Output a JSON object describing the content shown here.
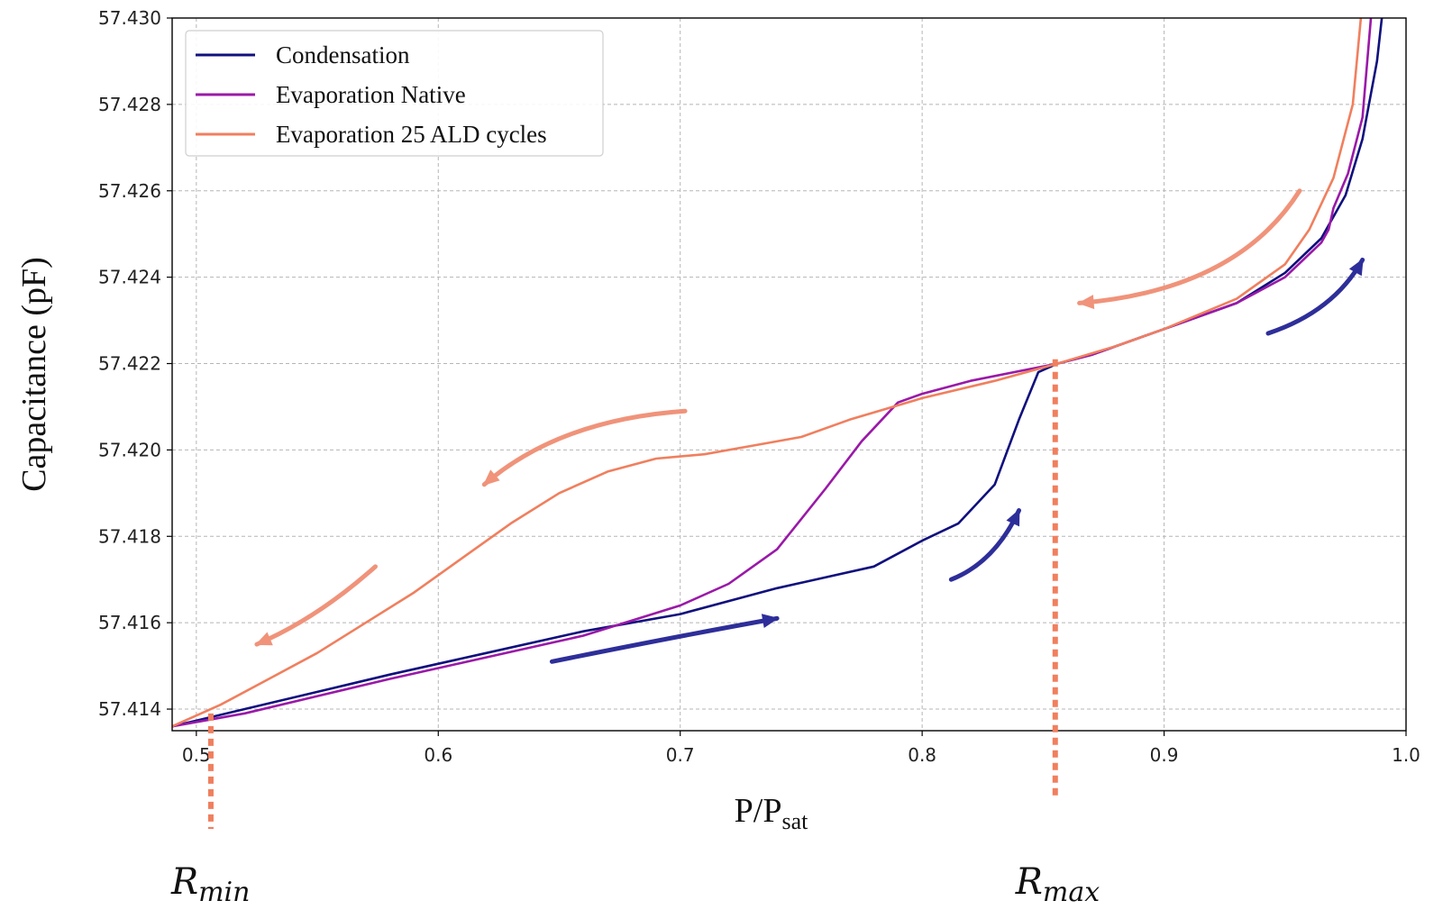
{
  "chart_data": {
    "type": "line",
    "xlabel": "P/P",
    "xlabel_sub": "sat",
    "ylabel": "Capacitance (pF)",
    "xlim": [
      0.49,
      1.0
    ],
    "ylim": [
      57.4135,
      57.43
    ],
    "x_ticks": [
      0.5,
      0.6,
      0.7,
      0.8,
      0.9,
      1.0
    ],
    "x_tick_labels": [
      "0.5",
      "0.6",
      "0.7",
      "0.8",
      "0.9",
      "1.0"
    ],
    "y_ticks": [
      57.414,
      57.416,
      57.418,
      57.42,
      57.422,
      57.424,
      57.426,
      57.428,
      57.43
    ],
    "y_tick_labels": [
      "57.414",
      "57.416",
      "57.418",
      "57.420",
      "57.422",
      "57.424",
      "57.426",
      "57.428",
      "57.430"
    ],
    "grid": true,
    "legend_position": "top-left",
    "series": [
      {
        "name": "Condensation",
        "color": "#10107e",
        "x": [
          0.49,
          0.52,
          0.55,
          0.58,
          0.62,
          0.66,
          0.7,
          0.74,
          0.78,
          0.8,
          0.815,
          0.83,
          0.84,
          0.848,
          0.856,
          0.87,
          0.9,
          0.93,
          0.95,
          0.965,
          0.975,
          0.982,
          0.988,
          0.992
        ],
        "y": [
          57.4136,
          57.414,
          57.4144,
          57.4148,
          57.4153,
          57.4158,
          57.4162,
          57.4168,
          57.4173,
          57.4179,
          57.4183,
          57.4192,
          57.4207,
          57.4218,
          57.422,
          57.4222,
          57.4228,
          57.4234,
          57.4241,
          57.4249,
          57.4259,
          57.4272,
          57.429,
          57.431
        ]
      },
      {
        "name": "Evaporation Native",
        "color": "#9a19a8",
        "x": [
          0.49,
          0.52,
          0.55,
          0.58,
          0.62,
          0.66,
          0.7,
          0.72,
          0.74,
          0.76,
          0.775,
          0.79,
          0.8,
          0.82,
          0.856,
          0.87,
          0.9,
          0.93,
          0.95,
          0.965,
          0.968,
          0.97,
          0.976,
          0.982,
          0.987
        ],
        "y": [
          57.4136,
          57.4139,
          57.4143,
          57.4147,
          57.4152,
          57.4157,
          57.4164,
          57.4169,
          57.4177,
          57.4191,
          57.4202,
          57.4211,
          57.4213,
          57.4216,
          57.422,
          57.4222,
          57.4228,
          57.4234,
          57.424,
          57.4248,
          57.4251,
          57.4256,
          57.4264,
          57.4277,
          57.431
        ]
      },
      {
        "name": "Evaporation 25 ALD cycles",
        "color": "#f07f5e",
        "x": [
          0.49,
          0.51,
          0.53,
          0.55,
          0.57,
          0.59,
          0.61,
          0.63,
          0.65,
          0.67,
          0.69,
          0.71,
          0.73,
          0.75,
          0.77,
          0.8,
          0.83,
          0.856,
          0.88,
          0.9,
          0.93,
          0.95,
          0.96,
          0.97,
          0.978,
          0.983
        ],
        "y": [
          57.4136,
          57.4141,
          57.4147,
          57.4153,
          57.416,
          57.4167,
          57.4175,
          57.4183,
          57.419,
          57.4195,
          57.4198,
          57.4199,
          57.4201,
          57.4203,
          57.4207,
          57.4212,
          57.4216,
          57.422,
          57.4224,
          57.4228,
          57.4235,
          57.4243,
          57.4251,
          57.4263,
          57.428,
          57.431
        ]
      }
    ],
    "arrows": [
      {
        "series": "Condensation",
        "from": [
          0.647,
          57.4151
        ],
        "ctrl": [
          0.7,
          57.4157
        ],
        "to": [
          0.74,
          57.4161
        ]
      },
      {
        "series": "Condensation",
        "from": [
          0.812,
          57.417
        ],
        "ctrl": [
          0.83,
          57.4174
        ],
        "to": [
          0.84,
          57.4186
        ]
      },
      {
        "series": "Condensation",
        "from": [
          0.943,
          57.4227
        ],
        "ctrl": [
          0.97,
          57.4232
        ],
        "to": [
          0.982,
          57.4244
        ]
      },
      {
        "series": "Evaporation 25 ALD cycles",
        "from": [
          0.956,
          57.426
        ],
        "ctrl": [
          0.93,
          57.4237
        ],
        "to": [
          0.865,
          57.4234
        ]
      },
      {
        "series": "Evaporation 25 ALD cycles",
        "from": [
          0.702,
          57.4209
        ],
        "ctrl": [
          0.65,
          57.4207
        ],
        "to": [
          0.619,
          57.4192
        ]
      },
      {
        "series": "Evaporation 25 ALD cycles",
        "from": [
          0.574,
          57.4173
        ],
        "ctrl": [
          0.55,
          57.4161
        ],
        "to": [
          0.525,
          57.4155
        ]
      }
    ],
    "markers": [
      {
        "label_base": "R",
        "label_sub": "min",
        "x": 0.506,
        "color": "#f07f5e"
      },
      {
        "label_base": "R",
        "label_sub": "max",
        "x": 0.855,
        "color": "#f07f5e"
      }
    ]
  }
}
